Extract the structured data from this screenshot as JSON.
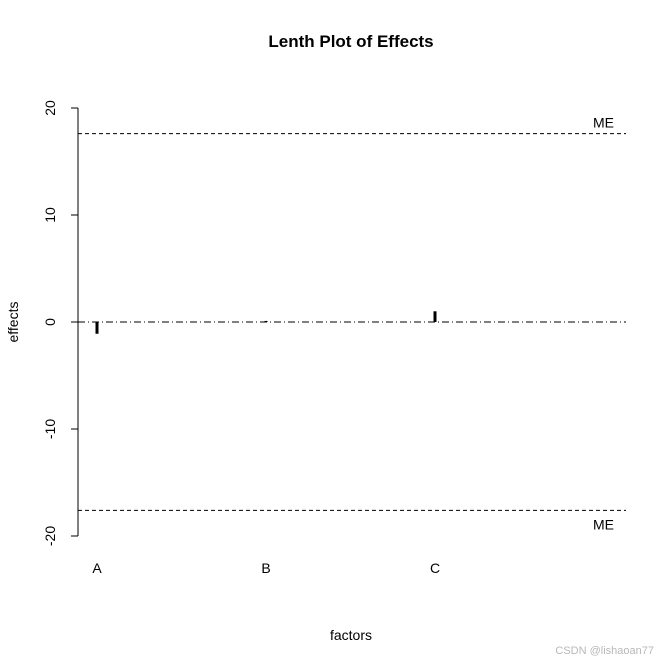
{
  "chart_data": {
    "type": "bar",
    "title": "Lenth Plot of Effects",
    "xlabel": "factors",
    "ylabel": "effects",
    "categories": [
      "A",
      "B",
      "C"
    ],
    "values": [
      -1.1,
      0.1,
      1.0
    ],
    "ylim": [
      -20,
      20
    ],
    "yticks": [
      "-20",
      "-10",
      "0",
      "10",
      "20"
    ],
    "reference_lines": [
      {
        "label": "ME",
        "value": 17.6
      },
      {
        "label": "ME",
        "value": -17.6
      }
    ],
    "zero_line": 0,
    "grid": false,
    "legend": "none"
  },
  "watermark": "CSDN @lishaoan77"
}
